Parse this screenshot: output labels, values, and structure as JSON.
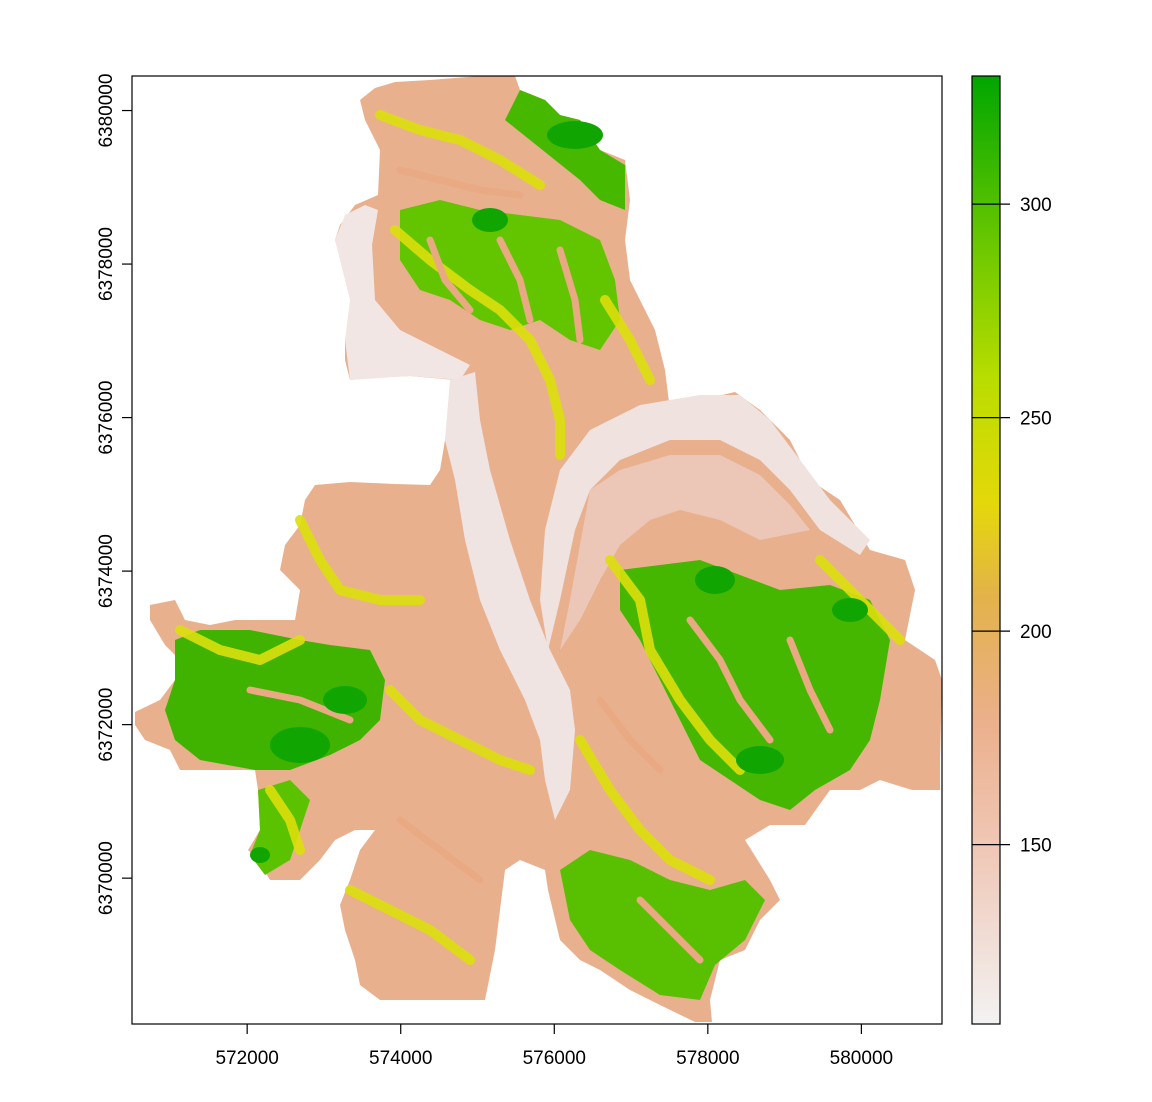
{
  "map": {
    "type": "raster",
    "x_ticks": [
      "572000",
      "574000",
      "576000",
      "578000",
      "580000"
    ],
    "y_ticks": [
      "6370000",
      "6372000",
      "6374000",
      "6376000",
      "6378000",
      "6380000"
    ],
    "xlim": [
      570500,
      581050
    ],
    "ylim": [
      6368100,
      6380450
    ],
    "legend": {
      "position": "right",
      "ticks": [
        "150",
        "200",
        "250",
        "300"
      ],
      "range": [
        108,
        330
      ],
      "tick_values": [
        150,
        200,
        250,
        300
      ],
      "color_stops": [
        "#f2f2f2",
        "#ebb08c",
        "#e0b03a",
        "#e6e600",
        "#7fd300",
        "#00a600"
      ]
    },
    "colors": {
      "low": "#f2f2f2",
      "mid_low": "#ebb08c",
      "mid": "#e6e600",
      "high": "#00a600"
    }
  }
}
